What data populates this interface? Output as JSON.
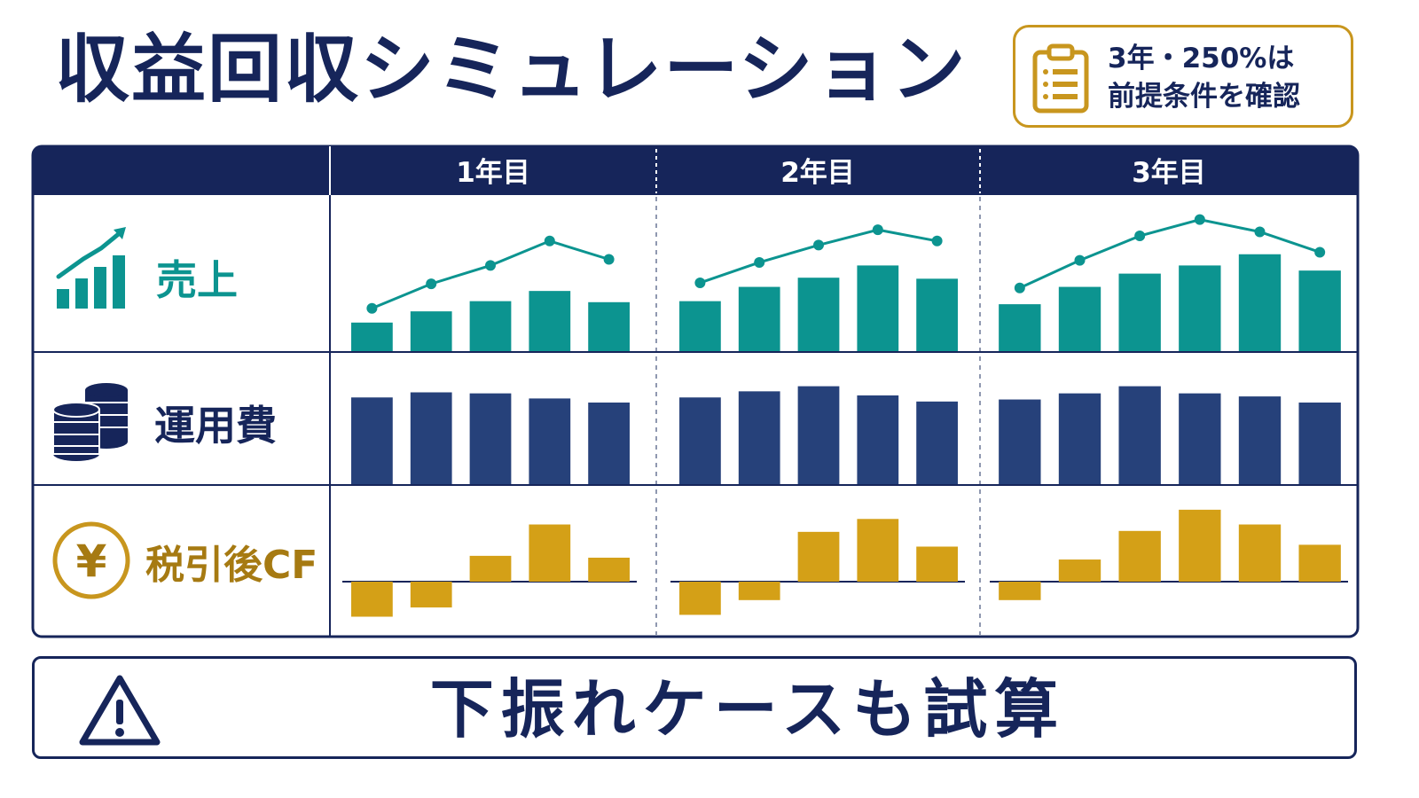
{
  "title": "収益回収シミュレーション",
  "note": {
    "line1": "3年・250%は",
    "line2": "前提条件を確認",
    "icon": "clipboard-icon"
  },
  "bottom": {
    "text": "下振れケースも試算",
    "icon": "warning-icon"
  },
  "colors": {
    "navy": "#16255a",
    "teal": "#0c9490",
    "gold": "#d4a017",
    "bar_navy": "#26417a",
    "label_gold": "#a67a12"
  },
  "chart_data": {
    "type": "bar",
    "categories": [
      "1年目",
      "2年目",
      "3年目"
    ],
    "rows": [
      {
        "name": "売上",
        "icon": "growth-chart-icon",
        "chart": "bar+line",
        "bars": [
          [
            0.28,
            0.39,
            0.49,
            0.59,
            0.48
          ],
          [
            0.49,
            0.63,
            0.72,
            0.84,
            0.71
          ],
          [
            0.46,
            0.63,
            0.76,
            0.84,
            0.95,
            0.79
          ]
        ],
        "line": [
          [
            0.42,
            0.66,
            0.84,
            1.08,
            0.9
          ],
          [
            0.67,
            0.87,
            1.04,
            1.19,
            1.08
          ],
          [
            0.62,
            0.89,
            1.13,
            1.29,
            1.17,
            0.97
          ]
        ]
      },
      {
        "name": "運用費",
        "icon": "coin-stack-icon",
        "chart": "bar",
        "bars": [
          [
            0.85,
            0.9,
            0.89,
            0.84,
            0.8
          ],
          [
            0.85,
            0.91,
            0.96,
            0.87,
            0.81
          ],
          [
            0.83,
            0.89,
            0.96,
            0.89,
            0.86,
            0.8
          ]
        ]
      },
      {
        "name": "税引後CF",
        "icon": "yen-coin-icon",
        "chart": "bar",
        "bars": [
          [
            -0.38,
            -0.28,
            0.28,
            0.62,
            0.26
          ],
          [
            -0.36,
            -0.2,
            0.54,
            0.68,
            0.38
          ],
          [
            -0.2,
            0.24,
            0.55,
            0.78,
            0.62,
            0.4
          ]
        ]
      }
    ]
  }
}
